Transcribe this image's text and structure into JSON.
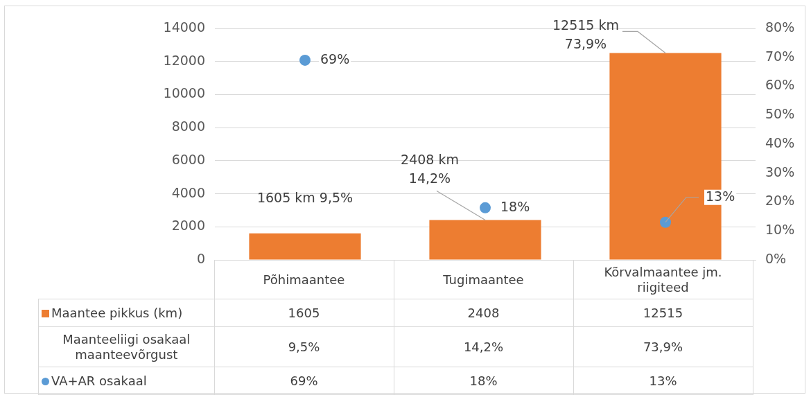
{
  "chart_data": {
    "type": "bar",
    "categories": [
      "Põhimaantee",
      "Tugimaantee",
      "Kõrvalmaantee jm. riigiteed"
    ],
    "series": [
      {
        "name": "Maantee pikkus (km)",
        "color": "#ed7d31",
        "values": [
          1605,
          2408,
          12515
        ],
        "value_labels": [
          "1605",
          "2408",
          "12515"
        ]
      },
      {
        "name": "VA+AR osakaal",
        "type": "scatter",
        "axis": "y2",
        "color": "#5b9bd5",
        "values": [
          69,
          18,
          13
        ],
        "value_labels": [
          "69%",
          "18%",
          "13%"
        ]
      }
    ],
    "annotations": [
      {
        "text": "1605 km 9,5%",
        "x": "Põhimaantee",
        "y": 1605
      },
      {
        "text": "2408 km 14,2%",
        "x": "Tugimaantee",
        "y": 2408
      },
      {
        "text": "12515 km 73,9%",
        "x": "Kõrvalmaantee jm. riigiteed",
        "y": 12515
      },
      "Maanteeliigi osakaal maanteevõrgust",
      "9,5%",
      "14,2%",
      "73,9%"
    ],
    "ylim": [
      0,
      14000
    ],
    "yticks": [
      0,
      2000,
      4000,
      6000,
      8000,
      10000,
      12000,
      14000
    ],
    "y2lim": [
      0,
      80
    ],
    "y2ticks": [
      {
        "value": 0,
        "label": "0%"
      },
      {
        "value": 10,
        "label": "10%"
      },
      {
        "value": 20,
        "label": "20%"
      },
      {
        "value": 30,
        "label": "30%"
      },
      {
        "value": 40,
        "label": "40%"
      },
      {
        "value": 50,
        "label": "50%"
      },
      {
        "value": 60,
        "label": "60%"
      },
      {
        "value": 70,
        "label": "70%"
      },
      {
        "value": 80,
        "label": "80%"
      }
    ],
    "grid": "y",
    "legend": "bottom",
    "marker": "circle"
  }
}
